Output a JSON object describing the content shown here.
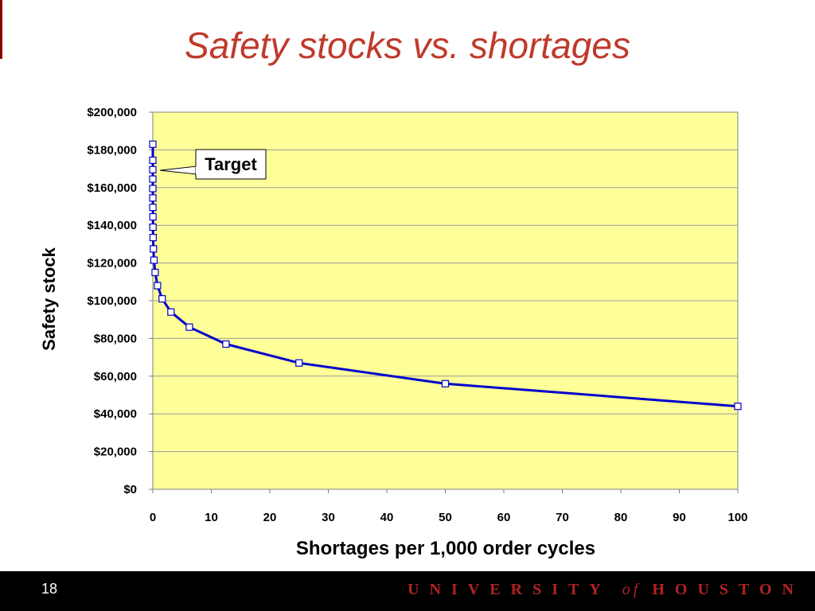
{
  "slide": {
    "title": "Safety stocks vs. shortages",
    "number": "18"
  },
  "footer": {
    "university_word1": "UNIVERSITY",
    "of_word": "of",
    "university_word2": "HOUSTON"
  },
  "colors": {
    "plot_background": "#ffff99",
    "line": "#0000cc",
    "title": "#c0392b",
    "footer_background": "#000000",
    "footer_text": "#b22222"
  },
  "chart_data": {
    "type": "line",
    "title": "Safety stocks vs. shortages",
    "xlabel": "Shortages per 1,000 order cycles",
    "ylabel": "Safety stock",
    "xlim": [
      0,
      100
    ],
    "ylim": [
      0,
      200000
    ],
    "grid": true,
    "x_ticks": [
      "0",
      "10",
      "20",
      "30",
      "40",
      "50",
      "60",
      "70",
      "80",
      "90",
      "100"
    ],
    "y_ticks": [
      "$0",
      "$20,000",
      "$40,000",
      "$60,000",
      "$80,000",
      "$100,000",
      "$120,000",
      "$140,000",
      "$160,000",
      "$180,000",
      "$200,000"
    ],
    "series": [
      {
        "x": [
          100,
          50,
          25,
          12.5,
          6.25,
          3.1,
          1.6,
          0.8,
          0.4,
          0.2,
          0.1,
          0.05,
          0.03,
          0.02,
          0.01,
          0.005,
          0.003,
          0.002,
          0.001,
          0.0005,
          0.0002
        ],
        "y": [
          44000,
          56000,
          67000,
          77000,
          86000,
          94000,
          101000,
          108000,
          115000,
          121500,
          127500,
          133500,
          139000,
          144500,
          149500,
          154500,
          159500,
          164500,
          169500,
          174500,
          183000
        ]
      }
    ],
    "annotation": {
      "text": "Target",
      "x": 0.002,
      "y": 170000
    }
  }
}
